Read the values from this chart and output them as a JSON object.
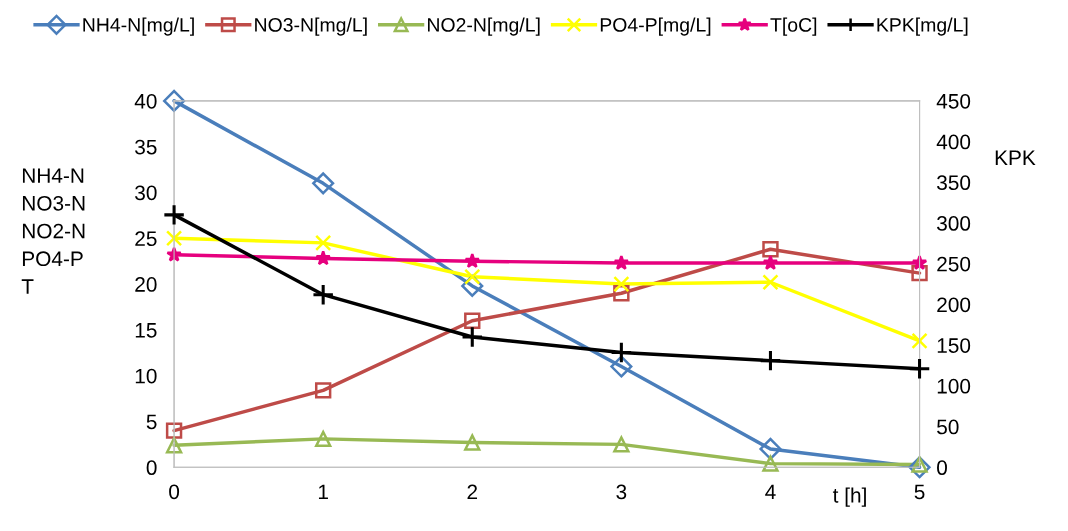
{
  "chart_data": {
    "type": "line",
    "xlabel": "t [h]",
    "ylabel": "NH4-N\nNO3-N\nNO2-N\nPO4-P\nT",
    "y2label": "KPK",
    "x": [
      0,
      1,
      2,
      3,
      4,
      5
    ],
    "xlim": [
      0,
      5
    ],
    "xticks": [
      0,
      1,
      2,
      3,
      4,
      5
    ],
    "ylim": [
      0,
      40
    ],
    "yticks": [
      0,
      5,
      10,
      15,
      20,
      25,
      30,
      35,
      40
    ],
    "y2lim": [
      0,
      450
    ],
    "y2ticks": [
      0,
      50,
      100,
      150,
      200,
      250,
      300,
      350,
      400,
      450
    ],
    "grid": false,
    "legend": "top",
    "line_style": "solid",
    "series": [
      {
        "name": "NH4-N[mg/L]",
        "color": "#4a7ebb",
        "marker": "diamond",
        "values": [
          40,
          31,
          19.8,
          11,
          2,
          0
        ]
      },
      {
        "name": "NO3-N[mg/L]",
        "color": "#be4b48",
        "marker": "square",
        "values": [
          4,
          8.4,
          16,
          19,
          23.8,
          21.2
        ]
      },
      {
        "name": "NO2-N[mg/L]",
        "color": "#98b954",
        "marker": "triangle",
        "values": [
          2.4,
          3.1,
          2.7,
          2.5,
          0.4,
          0.3
        ]
      },
      {
        "name": "PO4-P[mg/L]",
        "color": "#ffff00",
        "marker": "cross",
        "values": [
          25,
          24.5,
          20.8,
          20,
          20.2,
          13.8
        ]
      },
      {
        "name": "T[oC]",
        "color": "#e6007e",
        "marker": "star",
        "values": [
          23.2,
          22.8,
          22.5,
          22.3,
          22.3,
          22.3
        ]
      },
      {
        "name": "KPK[mg/L]",
        "color": "#000000",
        "marker": "plus",
        "axis": "y2",
        "values": [
          310,
          212,
          160,
          141,
          131,
          121
        ]
      }
    ]
  }
}
